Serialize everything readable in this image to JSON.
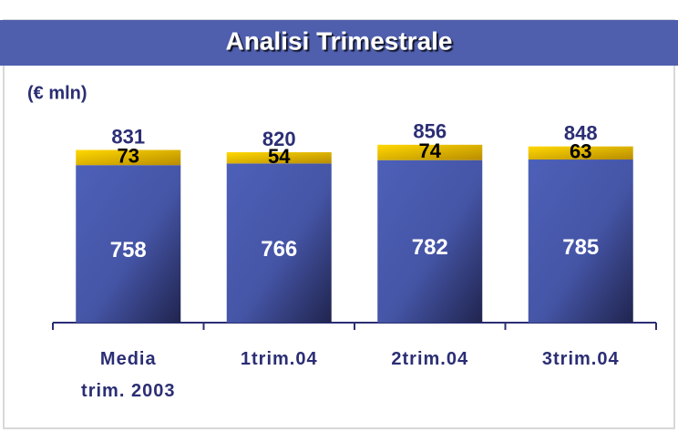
{
  "chart_data": {
    "type": "stacked_bar",
    "title": "Analisi Trimestrale",
    "subtitle": "(€ mln)",
    "categories": [
      "Media\ntrim. 2003",
      "1trim.04",
      "2trim.04",
      "3trim.04"
    ],
    "series": [
      {
        "color": "#4a5cb4",
        "values": [
          758,
          766,
          782,
          785
        ]
      },
      {
        "color": "#f2c400",
        "values": [
          73,
          54,
          74,
          63
        ]
      }
    ],
    "total_labels": [
      831,
      820,
      856,
      848
    ]
  }
}
